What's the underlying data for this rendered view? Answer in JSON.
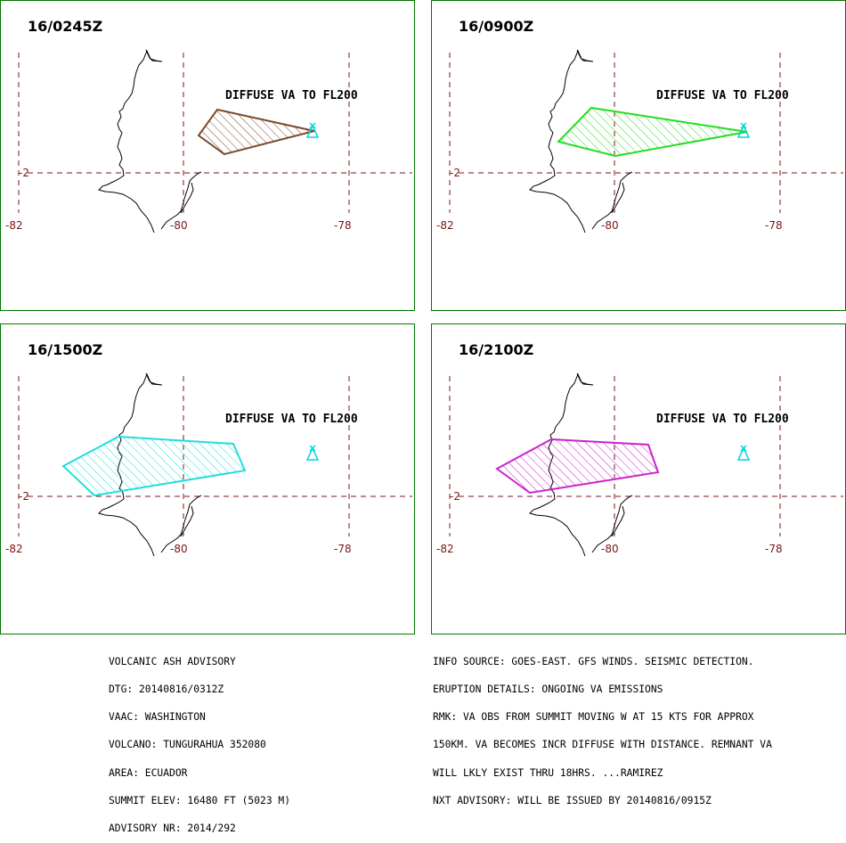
{
  "colors": {
    "frame": "#007700",
    "grid": "#7a1414",
    "coast": "#000000",
    "volcano": "#00d6e0"
  },
  "panels": [
    {
      "time": "16/0245Z",
      "label": "DIFFUSE VA TO FL200",
      "color": "#7a4a2a"
    },
    {
      "time": "16/0900Z",
      "label": "DIFFUSE VA TO FL200",
      "color": "#22dd22"
    },
    {
      "time": "16/1500Z",
      "label": "DIFFUSE VA TO FL200",
      "color": "#22dddd"
    },
    {
      "time": "16/2100Z",
      "label": "DIFFUSE VA TO FL200",
      "color": "#cc22cc"
    }
  ],
  "grid_labels": {
    "lon_left": "-82",
    "lon_mid": "-80",
    "lon_right": "-78",
    "lat": "-2"
  },
  "advisory_left": [
    "VOLCANIC ASH ADVISORY",
    "DTG: 20140816/0312Z",
    "VAAC: WASHINGTON",
    "VOLCANO: TUNGURAHUA 352080",
    "AREA: ECUADOR",
    "SUMMIT ELEV: 16480 FT (5023 M)",
    "ADVISORY NR: 2014/292"
  ],
  "advisory_right": [
    "INFO SOURCE: GOES-EAST. GFS WINDS. SEISMIC DETECTION.",
    "ERUPTION DETAILS: ONGOING VA EMISSIONS",
    "RMK: VA OBS FROM SUMMIT MOVING W AT 15 KTS FOR APPROX",
    "150KM. VA BECOMES INCR DIFFUSE WITH DISTANCE. REMNANT VA",
    "WILL LKLY EXIST THRU 18HRS. ...RAMIREZ",
    "NXT ADVISORY: WILL BE ISSUED BY 20140816/0915Z"
  ]
}
